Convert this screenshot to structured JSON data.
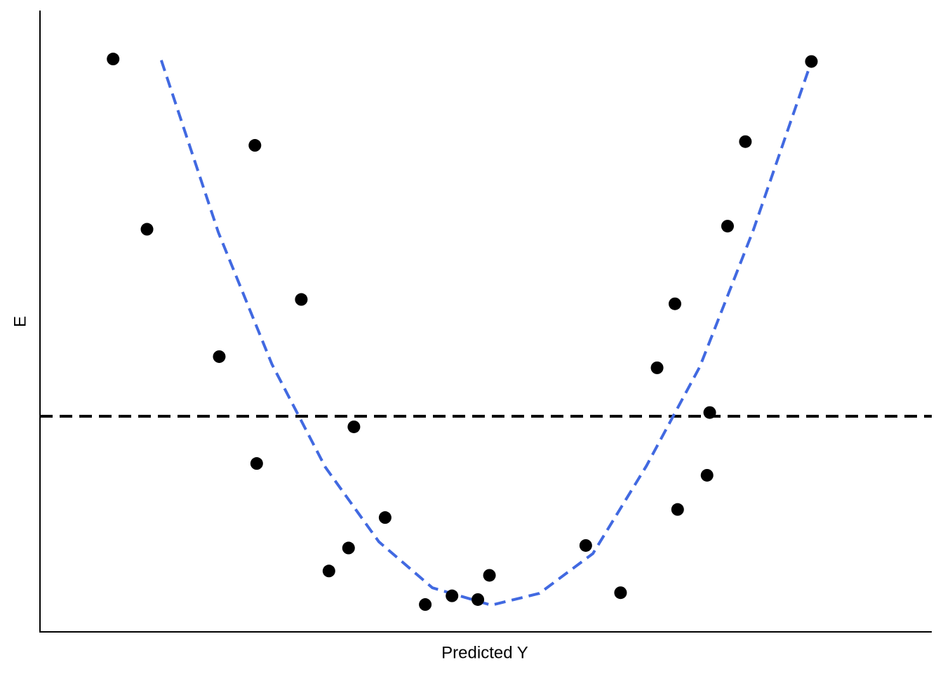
{
  "chart_data": {
    "type": "scatter",
    "x_label": "Predicted Y",
    "y_label": "E",
    "xlim": [
      0,
      100
    ],
    "ylim": [
      -34.7,
      65.3
    ],
    "x": [
      8.2,
      12.0,
      24.1,
      20.1,
      29.3,
      24.3,
      35.2,
      32.4,
      34.6,
      38.7,
      43.2,
      46.2,
      49.1,
      50.4,
      61.2,
      65.1,
      69.2,
      71.2,
      71.5,
      74.8,
      75.1,
      77.1,
      79.1,
      86.5
    ],
    "values": [
      57.5,
      30.1,
      43.6,
      9.6,
      18.8,
      -7.6,
      -1.7,
      -24.9,
      -21.2,
      -16.3,
      -30.3,
      -28.9,
      -29.5,
      -25.6,
      -20.8,
      -28.4,
      7.8,
      18.1,
      -15.0,
      -9.5,
      0.6,
      30.6,
      44.2,
      57.1
    ],
    "color": "#000000",
    "fit": {
      "x": [
        13.6,
        20,
        26,
        32,
        38,
        44,
        50.6,
        56,
        62,
        68,
        74,
        80,
        86.5
      ],
      "values": [
        57.3,
        29.6,
        8.4,
        -8.2,
        -20.2,
        -27.6,
        -30.4,
        -28.5,
        -22.1,
        -8.0,
        8.0,
        30.0,
        57.1
      ],
      "color": "#4169e1",
      "dashed": true
    },
    "hline": {
      "value": 0,
      "color": "#000000",
      "dashed": true
    }
  }
}
